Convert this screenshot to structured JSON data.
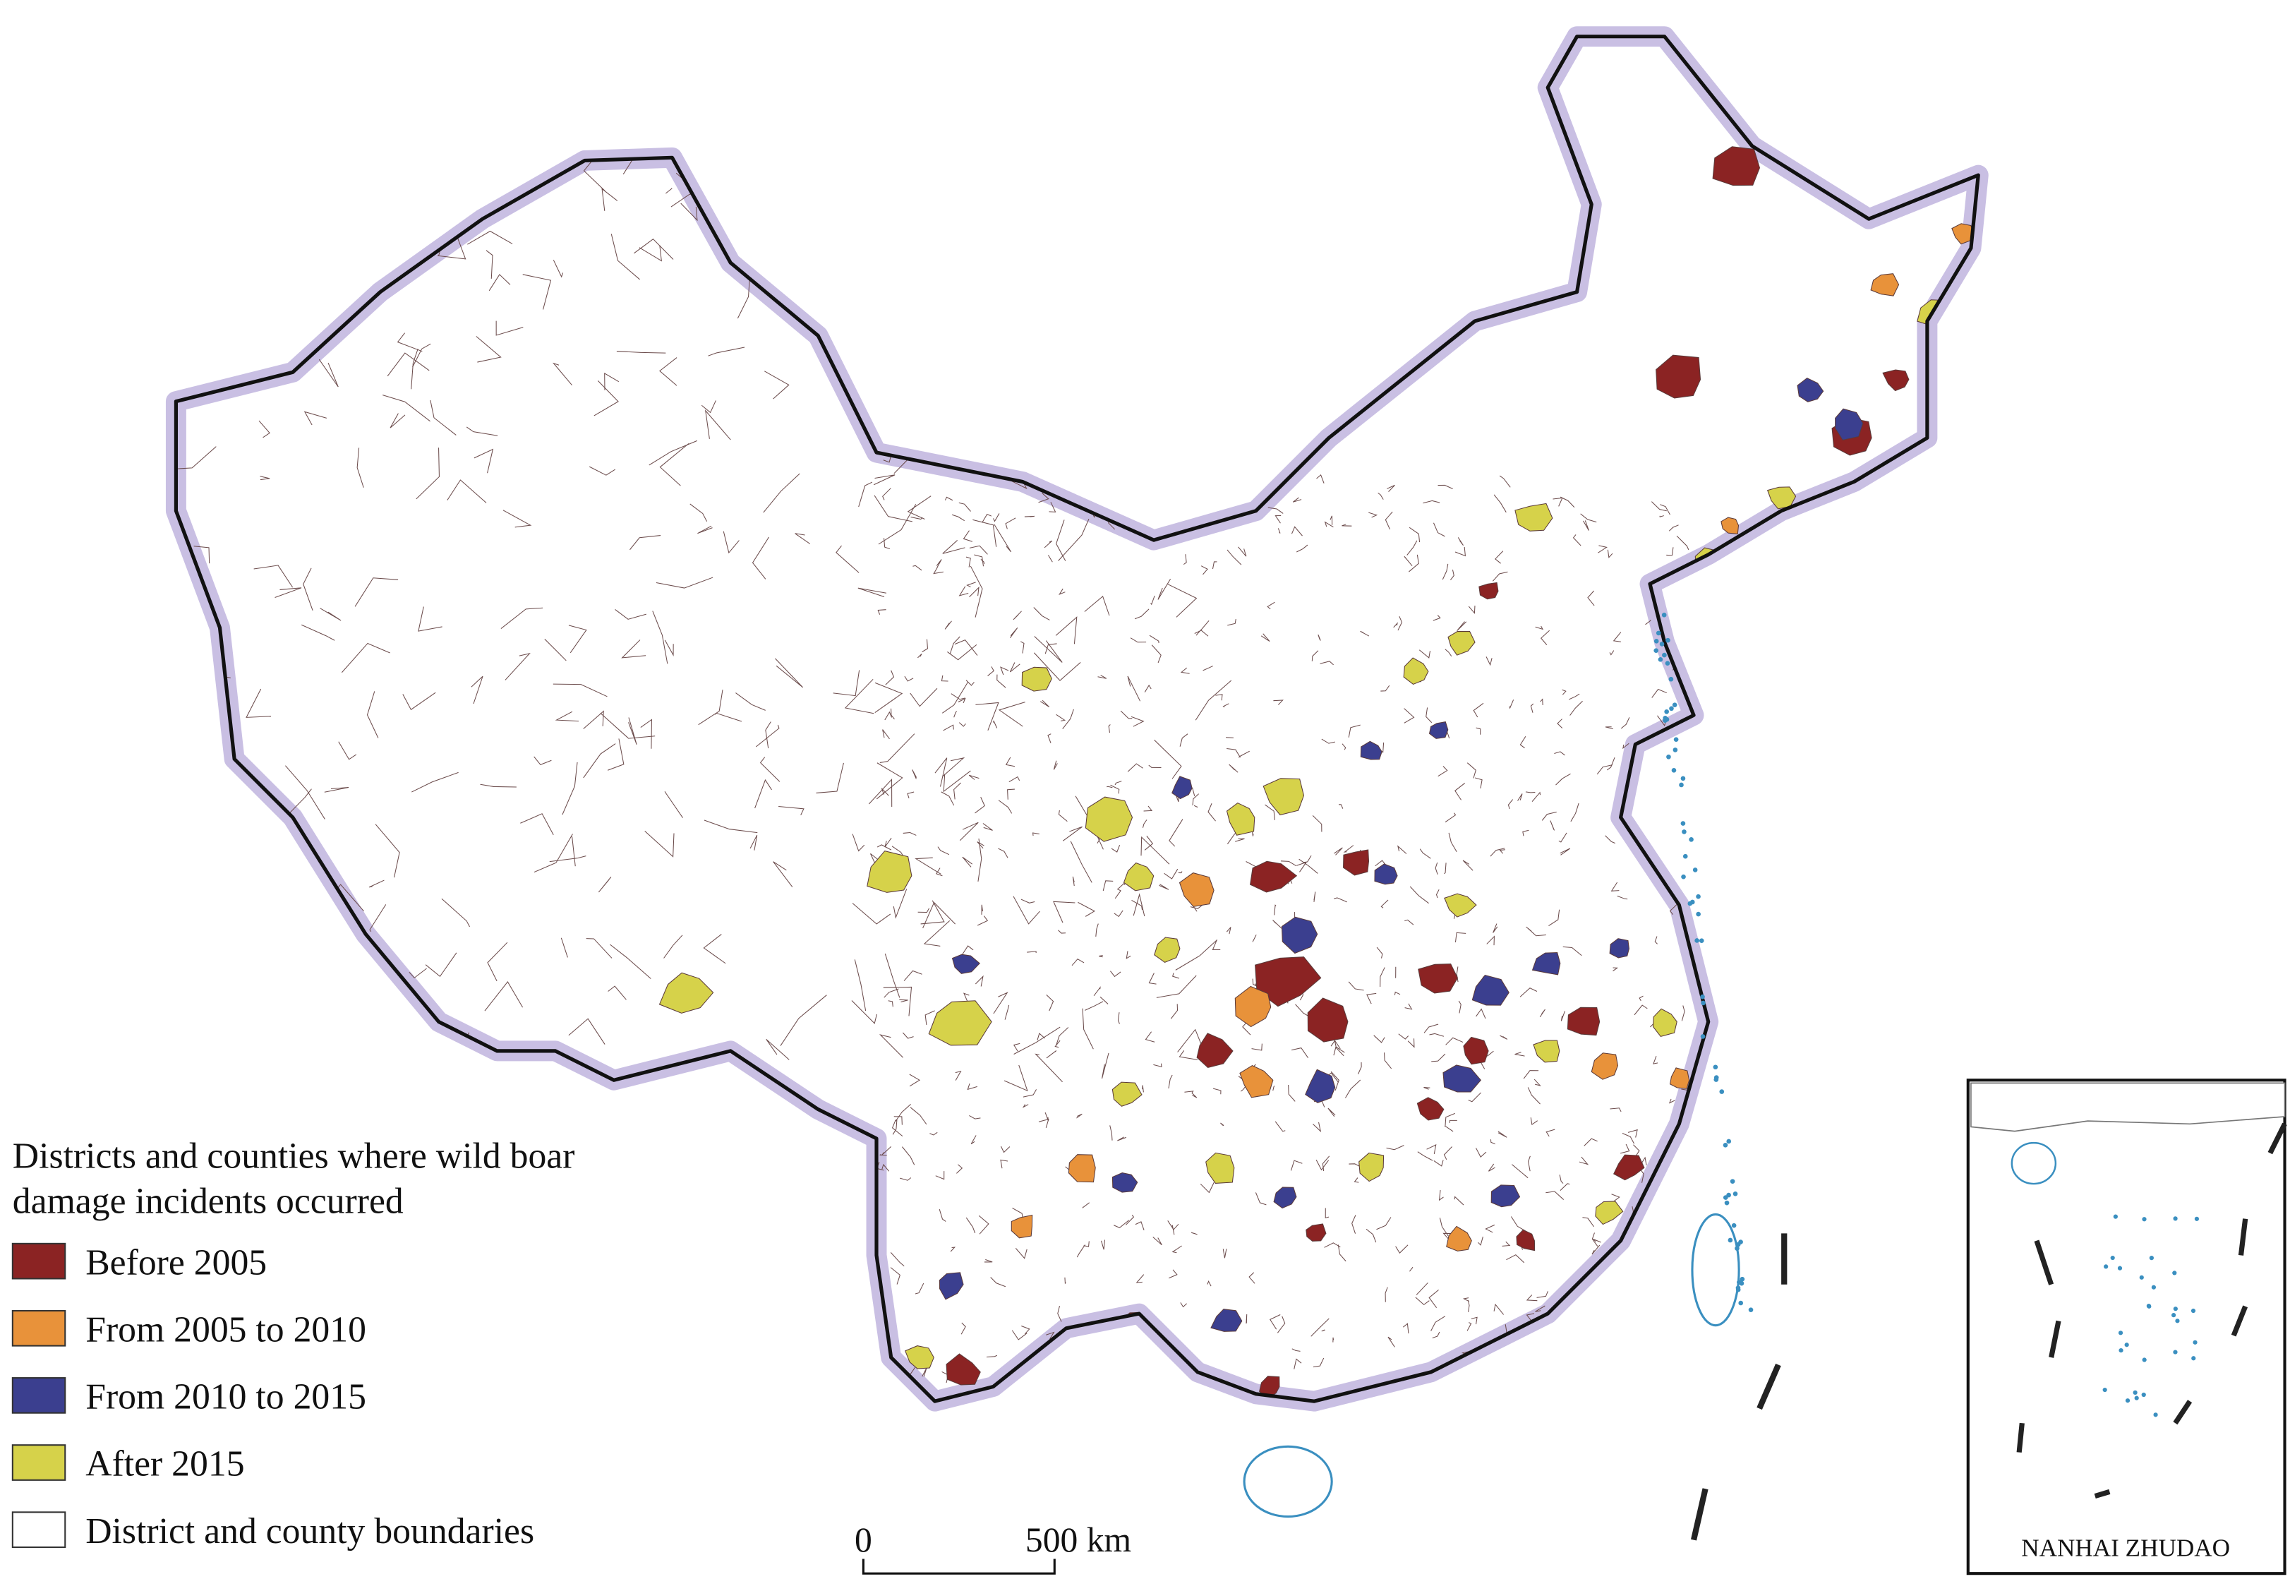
{
  "legend": {
    "title_lines": [
      "Districts and counties where wild boar",
      "damage incidents occurred"
    ],
    "items": [
      {
        "label": "Before 2005",
        "color": "#8b2323"
      },
      {
        "label": "From 2005 to 2010",
        "color": "#e8923a"
      },
      {
        "label": "From 2010 to 2015",
        "color": "#3b3f8f"
      },
      {
        "label": "After 2015",
        "color": "#d6d24a"
      },
      {
        "label": "District and county boundaries",
        "color": "#ffffff"
      }
    ]
  },
  "scale_bar": {
    "start_label": "0",
    "end_label": "500 km"
  },
  "inset": {
    "label": "NANHAI ZHUDAO"
  }
}
